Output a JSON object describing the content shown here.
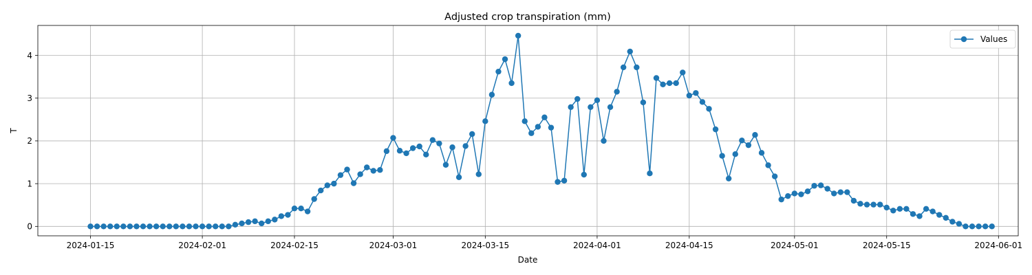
{
  "chart_data": {
    "type": "line",
    "title": "Adjusted crop transpiration (mm)",
    "xlabel": "Date",
    "ylabel": "T",
    "grid": true,
    "legend_position": "top-right",
    "color": "#1f77b4",
    "marker": "circle",
    "x_start": "2024-01-15",
    "x_ticks": [
      "2024-01-15",
      "2024-02-01",
      "2024-02-15",
      "2024-03-01",
      "2024-03-15",
      "2024-04-01",
      "2024-04-15",
      "2024-05-01",
      "2024-05-15",
      "2024-06-01"
    ],
    "y_ticks": [
      0,
      1,
      2,
      3,
      4
    ],
    "xlim": [
      "2024-01-07",
      "2024-06-04"
    ],
    "ylim": [
      -0.22,
      4.7
    ],
    "series": [
      {
        "name": "Values",
        "values": [
          0,
          0,
          0,
          0,
          0,
          0,
          0,
          0,
          0,
          0,
          0,
          0,
          0,
          0,
          0,
          0,
          0,
          0,
          0,
          0,
          0,
          0,
          0.04,
          0.07,
          0.1,
          0.12,
          0.07,
          0.12,
          0.16,
          0.24,
          0.27,
          0.42,
          0.42,
          0.35,
          0.64,
          0.84,
          0.96,
          1.0,
          1.2,
          1.33,
          1.01,
          1.22,
          1.38,
          1.3,
          1.32,
          1.76,
          2.07,
          1.77,
          1.71,
          1.83,
          1.87,
          1.68,
          2.02,
          1.94,
          1.44,
          1.85,
          1.15,
          1.88,
          2.16,
          1.22,
          2.46,
          3.08,
          3.62,
          3.91,
          3.35,
          4.46,
          2.46,
          2.18,
          2.33,
          2.55,
          2.31,
          1.04,
          1.07,
          2.79,
          2.98,
          1.21,
          2.79,
          2.95,
          2.0,
          2.79,
          3.15,
          3.72,
          4.09,
          3.72,
          2.9,
          1.24,
          3.47,
          3.32,
          3.35,
          3.35,
          3.6,
          3.06,
          3.12,
          2.91,
          2.75,
          2.27,
          1.65,
          1.12,
          1.69,
          2.01,
          1.9,
          2.14,
          1.72,
          1.43,
          1.17,
          0.63,
          0.71,
          0.77,
          0.75,
          0.82,
          0.95,
          0.96,
          0.88,
          0.77,
          0.8,
          0.8,
          0.6,
          0.53,
          0.51,
          0.51,
          0.51,
          0.44,
          0.37,
          0.41,
          0.41,
          0.29,
          0.24,
          0.41,
          0.35,
          0.27,
          0.2,
          0.11,
          0.06,
          0,
          0,
          0,
          0,
          0
        ]
      }
    ]
  }
}
